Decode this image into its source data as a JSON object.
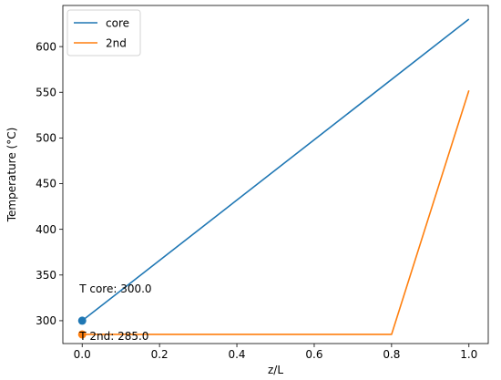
{
  "chart_data": {
    "type": "line",
    "xlabel": "z/L",
    "ylabel": "Temperature (°C)",
    "xlim": [
      -0.05,
      1.05
    ],
    "ylim": [
      275,
      645
    ],
    "xticks": [
      0.0,
      0.2,
      0.4,
      0.6,
      0.8,
      1.0
    ],
    "xtick_labels": [
      "0.0",
      "0.2",
      "0.4",
      "0.6",
      "0.8",
      "1.0"
    ],
    "yticks": [
      300,
      350,
      400,
      450,
      500,
      550,
      600
    ],
    "ytick_labels": [
      "300",
      "350",
      "400",
      "450",
      "500",
      "550",
      "600"
    ],
    "grid": false,
    "legend_position": "top-left",
    "series": [
      {
        "name": "core",
        "color": "#1f77b4",
        "x": [
          0.0,
          1.0
        ],
        "y": [
          300,
          630
        ]
      },
      {
        "name": "2nd",
        "color": "#ff7f0e",
        "x": [
          0.0,
          0.8,
          1.0
        ],
        "y": [
          285,
          285,
          552
        ]
      }
    ],
    "markers": [
      {
        "series": "core",
        "x": 0.0,
        "y": 300,
        "color": "#1f77b4"
      },
      {
        "series": "2nd",
        "x": 0.0,
        "y": 285,
        "color": "#ff7f0e"
      }
    ],
    "annotations": [
      {
        "text": "T core: 300.0",
        "x": 0.0,
        "y": 300
      },
      {
        "text": "T 2nd: 285.0",
        "x": 0.0,
        "y": 285
      }
    ]
  }
}
